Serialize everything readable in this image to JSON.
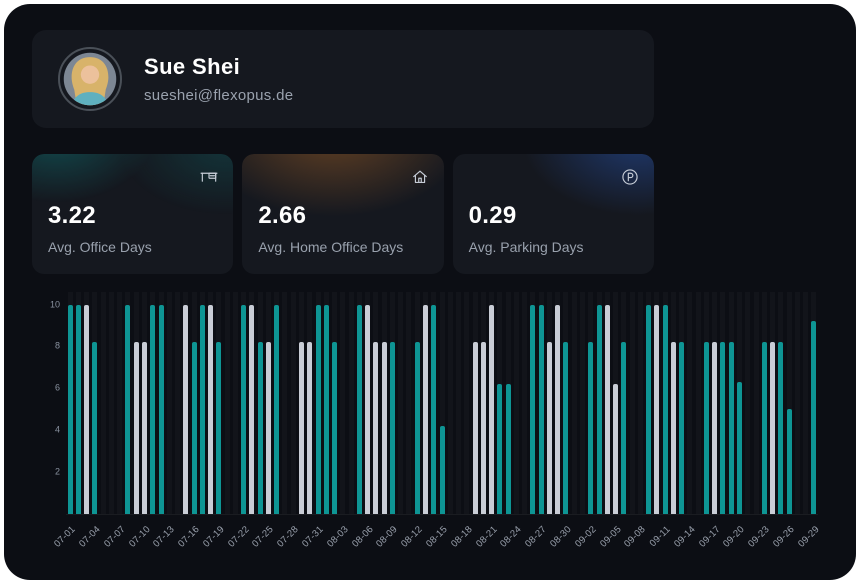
{
  "profile": {
    "name": "Sue Shei",
    "email": "sueshei@flexopus.de"
  },
  "stats": [
    {
      "value": "3.22",
      "label": "Avg. Office Days",
      "icon": "desk-icon",
      "accent": "#0E9594"
    },
    {
      "value": "2.66",
      "label": "Avg. Home Office Days",
      "icon": "home-icon",
      "accent": "#D17A2B"
    },
    {
      "value": "0.29",
      "label": "Avg. Parking Days",
      "icon": "parking-icon",
      "accent": "#2B5FC9"
    }
  ],
  "chart_data": {
    "type": "bar",
    "title": "",
    "xlabel": "",
    "ylabel": "",
    "ylim": [
      0,
      10
    ],
    "yticks": [
      2,
      4,
      6,
      8,
      10
    ],
    "grid": "faint-vertical-day-stripes",
    "legend": "none",
    "tick_labels": [
      "07-01",
      "07-04",
      "07-07",
      "07-10",
      "07-13",
      "07-16",
      "07-19",
      "07-22",
      "07-25",
      "07-28",
      "07-31",
      "08-03",
      "08-06",
      "08-09",
      "08-12",
      "08-15",
      "08-18",
      "08-21",
      "08-24",
      "08-27",
      "08-30",
      "09-02",
      "09-05",
      "09-08",
      "09-11",
      "09-14",
      "09-17",
      "09-20",
      "09-23",
      "09-26",
      "09-29"
    ],
    "palette": {
      "teal": "#0E9594",
      "gray": "#C9CDD6"
    },
    "bars": [
      {
        "d": "07-01",
        "v": 10,
        "c": "teal"
      },
      {
        "d": "07-02",
        "v": 10,
        "c": "teal"
      },
      {
        "d": "07-03",
        "v": 10,
        "c": "gray"
      },
      {
        "d": "07-04",
        "v": 8.2,
        "c": "teal"
      },
      {
        "d": "07-08",
        "v": 10,
        "c": "teal"
      },
      {
        "d": "07-09",
        "v": 8.2,
        "c": "gray"
      },
      {
        "d": "07-10",
        "v": 8.2,
        "c": "gray"
      },
      {
        "d": "07-11",
        "v": 10,
        "c": "teal"
      },
      {
        "d": "07-12",
        "v": 10,
        "c": "teal"
      },
      {
        "d": "07-15",
        "v": 10,
        "c": "gray"
      },
      {
        "d": "07-16",
        "v": 8.2,
        "c": "teal"
      },
      {
        "d": "07-17",
        "v": 10,
        "c": "teal"
      },
      {
        "d": "07-18",
        "v": 10,
        "c": "gray"
      },
      {
        "d": "07-19",
        "v": 8.2,
        "c": "teal"
      },
      {
        "d": "07-22",
        "v": 10,
        "c": "teal"
      },
      {
        "d": "07-23",
        "v": 10,
        "c": "gray"
      },
      {
        "d": "07-24",
        "v": 8.2,
        "c": "teal"
      },
      {
        "d": "07-25",
        "v": 8.2,
        "c": "gray"
      },
      {
        "d": "07-26",
        "v": 10,
        "c": "teal"
      },
      {
        "d": "07-29",
        "v": 8.2,
        "c": "gray"
      },
      {
        "d": "07-30",
        "v": 8.2,
        "c": "gray"
      },
      {
        "d": "07-31",
        "v": 10,
        "c": "teal"
      },
      {
        "d": "08-01",
        "v": 10,
        "c": "teal"
      },
      {
        "d": "08-02",
        "v": 8.2,
        "c": "teal"
      },
      {
        "d": "08-05",
        "v": 10,
        "c": "teal"
      },
      {
        "d": "08-06",
        "v": 10,
        "c": "gray"
      },
      {
        "d": "08-07",
        "v": 8.2,
        "c": "gray"
      },
      {
        "d": "08-08",
        "v": 8.2,
        "c": "gray"
      },
      {
        "d": "08-09",
        "v": 8.2,
        "c": "teal"
      },
      {
        "d": "08-12",
        "v": 8.2,
        "c": "teal"
      },
      {
        "d": "08-13",
        "v": 10,
        "c": "gray"
      },
      {
        "d": "08-14",
        "v": 10,
        "c": "teal"
      },
      {
        "d": "08-15",
        "v": 4.2,
        "c": "teal"
      },
      {
        "d": "08-19",
        "v": 8.2,
        "c": "gray"
      },
      {
        "d": "08-20",
        "v": 8.2,
        "c": "gray"
      },
      {
        "d": "08-21",
        "v": 10,
        "c": "gray"
      },
      {
        "d": "08-22",
        "v": 6.2,
        "c": "teal"
      },
      {
        "d": "08-23",
        "v": 6.2,
        "c": "teal"
      },
      {
        "d": "08-26",
        "v": 10,
        "c": "teal"
      },
      {
        "d": "08-27",
        "v": 10,
        "c": "teal"
      },
      {
        "d": "08-28",
        "v": 8.2,
        "c": "gray"
      },
      {
        "d": "08-29",
        "v": 10,
        "c": "gray"
      },
      {
        "d": "08-30",
        "v": 8.2,
        "c": "teal"
      },
      {
        "d": "09-02",
        "v": 8.2,
        "c": "teal"
      },
      {
        "d": "09-03",
        "v": 10,
        "c": "teal"
      },
      {
        "d": "09-04",
        "v": 10,
        "c": "gray"
      },
      {
        "d": "09-05",
        "v": 6.2,
        "c": "gray"
      },
      {
        "d": "09-06",
        "v": 8.2,
        "c": "teal"
      },
      {
        "d": "09-09",
        "v": 10,
        "c": "teal"
      },
      {
        "d": "09-10",
        "v": 10,
        "c": "gray"
      },
      {
        "d": "09-11",
        "v": 10,
        "c": "teal"
      },
      {
        "d": "09-12",
        "v": 8.2,
        "c": "gray"
      },
      {
        "d": "09-13",
        "v": 8.2,
        "c": "teal"
      },
      {
        "d": "09-16",
        "v": 8.2,
        "c": "teal"
      },
      {
        "d": "09-17",
        "v": 8.2,
        "c": "gray"
      },
      {
        "d": "09-18",
        "v": 8.2,
        "c": "teal"
      },
      {
        "d": "09-19",
        "v": 8.2,
        "c": "teal"
      },
      {
        "d": "09-20",
        "v": 6.3,
        "c": "teal"
      },
      {
        "d": "09-23",
        "v": 8.2,
        "c": "teal"
      },
      {
        "d": "09-24",
        "v": 8.2,
        "c": "gray"
      },
      {
        "d": "09-25",
        "v": 8.2,
        "c": "teal"
      },
      {
        "d": "09-26",
        "v": 5,
        "c": "teal"
      },
      {
        "d": "09-29",
        "v": 9.2,
        "c": "teal"
      }
    ]
  }
}
